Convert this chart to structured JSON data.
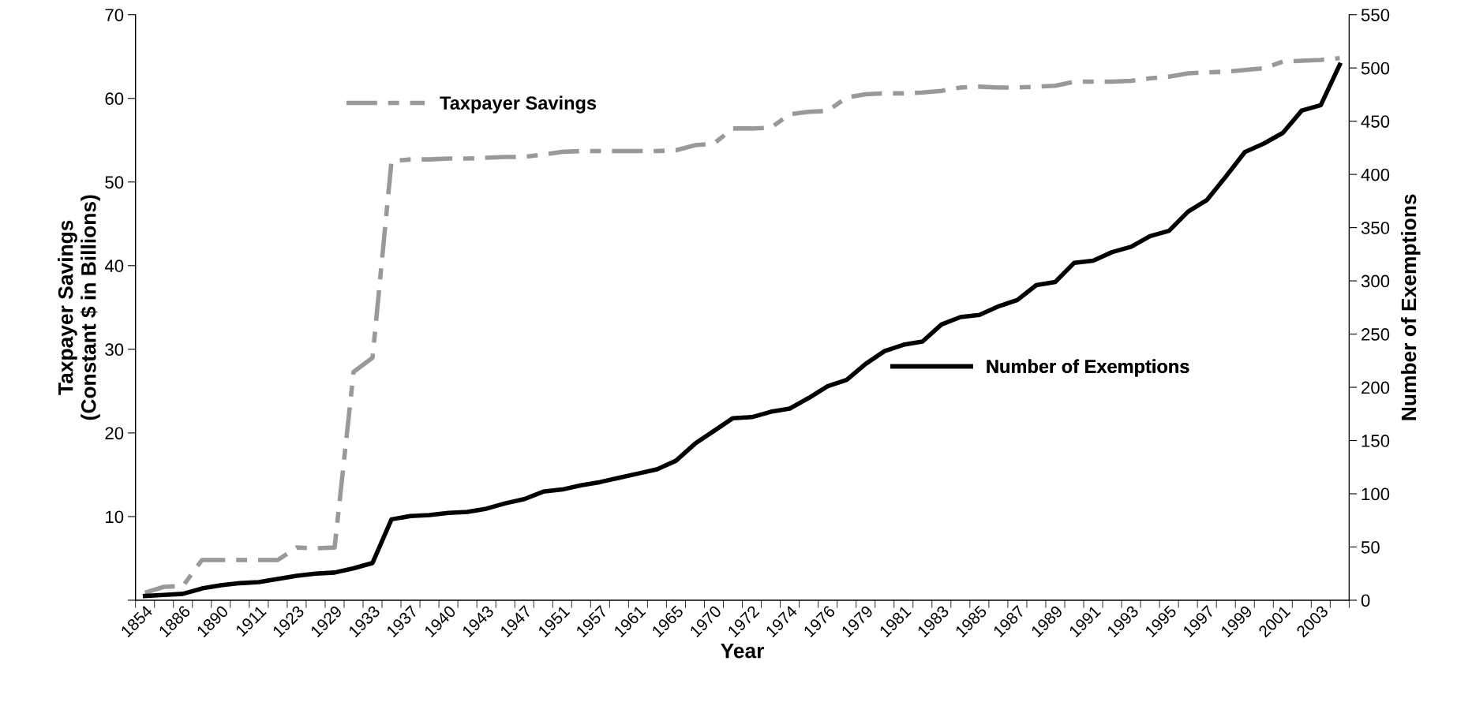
{
  "chart_data": {
    "type": "line",
    "xlabel": "Year",
    "ylabel": "Taxpayer Savings\n(Constant $ in Billions)",
    "y2label": "Number of Exemptions",
    "categories": [
      "1854",
      null,
      "1886",
      null,
      "1890",
      null,
      "1911",
      null,
      "1923",
      null,
      "1929",
      null,
      "1933",
      null,
      "1937",
      null,
      "1940",
      null,
      "1943",
      null,
      "1947",
      null,
      "1951",
      null,
      "1957",
      null,
      "1961",
      null,
      "1965",
      null,
      "1970",
      null,
      "1972",
      null,
      "1974",
      null,
      "1976",
      null,
      "1979",
      null,
      "1981",
      null,
      "1983",
      null,
      "1985",
      null,
      "1987",
      null,
      "1989",
      null,
      "1991",
      null,
      "1993",
      null,
      "1995",
      null,
      "1997",
      null,
      "1999",
      null,
      "2001",
      null,
      "2003",
      null
    ],
    "series": [
      {
        "name": "Taxpayer Savings",
        "color": "#999999",
        "line_style": "dashed",
        "values": [
          0.9,
          1.6,
          1.7,
          4.8,
          4.8,
          4.8,
          4.8,
          4.8,
          6.3,
          6.2,
          6.3,
          27.3,
          29.0,
          52.5,
          52.7,
          52.7,
          52.8,
          52.8,
          52.9,
          53.0,
          53.0,
          53.3,
          53.6,
          53.7,
          53.7,
          53.7,
          53.7,
          53.7,
          53.8,
          54.4,
          54.6,
          56.4,
          56.4,
          56.5,
          58.1,
          58.4,
          58.5,
          60.1,
          60.5,
          60.6,
          60.6,
          60.7,
          60.9,
          61.3,
          61.4,
          61.3,
          61.3,
          61.4,
          61.5,
          62.0,
          62.0,
          62.0,
          62.1,
          62.4,
          62.6,
          63.0,
          63.1,
          63.2,
          63.4,
          63.6,
          64.4,
          64.5,
          64.6,
          64.8
        ]
      },
      {
        "name": "Number of Exemptions",
        "color": "#000000",
        "line_style": "solid",
        "axis": "y2",
        "values": [
          4,
          5,
          6,
          11,
          14,
          16,
          17,
          20,
          23,
          25,
          26,
          30,
          35,
          76,
          79,
          80,
          82,
          83,
          86,
          91,
          95,
          102,
          104,
          108,
          111,
          115,
          119,
          123,
          131,
          147,
          159,
          171,
          172,
          177,
          180,
          190,
          201,
          207,
          222,
          234,
          240,
          243,
          259,
          266,
          268,
          276,
          282,
          296,
          299,
          317,
          319,
          327,
          332,
          342,
          347,
          365,
          376,
          398,
          421,
          429,
          439,
          460,
          465,
          503
        ]
      }
    ],
    "ylim": [
      0,
      70
    ],
    "yticks": [
      {
        "value": 0,
        "label": null
      },
      10,
      20,
      30,
      40,
      50,
      60,
      70
    ],
    "y2lim": [
      0,
      550
    ],
    "y2ticks": [
      0,
      50,
      100,
      150,
      200,
      250,
      300,
      350,
      400,
      450,
      500,
      550
    ],
    "grid": false,
    "legend": "top left",
    "marker": "none"
  }
}
